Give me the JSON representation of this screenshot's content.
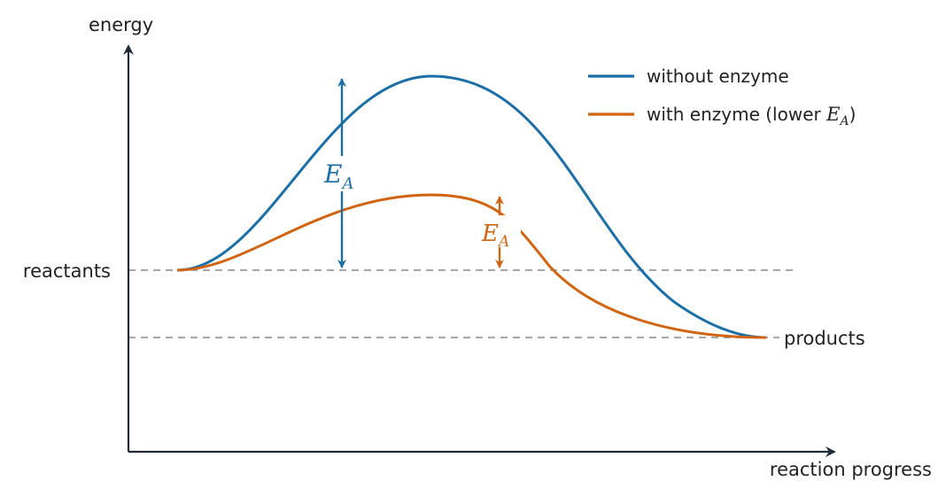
{
  "labels": {
    "y_axis": "energy",
    "x_axis": "reaction progress",
    "reactants": "reactants",
    "products": "products"
  },
  "legend": {
    "without": "without enzyme",
    "with_prefix": "with enzyme (lower ",
    "with_symbol": "E",
    "with_subscript": "A",
    "with_suffix": ")"
  },
  "annotations": {
    "ea_symbol": "E",
    "ea_subscript": "A"
  },
  "colors": {
    "axis": "#1f2a38",
    "without_enzyme": "#1a6fa8",
    "with_enzyme": "#d2640f",
    "dashed": "#8a8a8a",
    "text": "#222222"
  }
}
